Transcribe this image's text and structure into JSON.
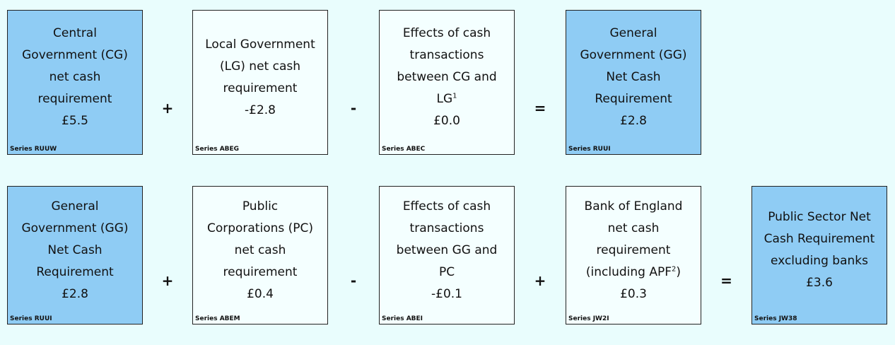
{
  "rows": [
    {
      "boxes": [
        {
          "lines": [
            "Central",
            "Government (CG)",
            "net cash",
            "requirement"
          ],
          "value": "£5.5",
          "series": "Series RUUW",
          "style": "blue"
        },
        {
          "lines": [
            "Local Government",
            "(LG) net cash",
            "requirement"
          ],
          "value": "-£2.8",
          "series": "Series ABEG",
          "style": "white"
        },
        {
          "lines": [
            "Effects of cash",
            "transactions",
            "between CG and",
            {
              "text": "LG",
              "sup": "1"
            }
          ],
          "value": "£0.0",
          "series": "Series ABEC",
          "style": "white"
        },
        {
          "lines": [
            "General",
            "Government (GG)",
            "Net Cash",
            "Requirement"
          ],
          "value": "£2.8",
          "series": "Series RUUI",
          "style": "blue"
        }
      ],
      "operators": [
        "+",
        "-",
        "="
      ]
    },
    {
      "boxes": [
        {
          "lines": [
            "General",
            "Government (GG)",
            "Net Cash",
            "Requirement"
          ],
          "value": "£2.8",
          "series": "Series RUUI",
          "style": "blue"
        },
        {
          "lines": [
            "Public",
            "Corporations (PC)",
            "net cash",
            "requirement"
          ],
          "value": "£0.4",
          "series": "Series ABEM",
          "style": "white"
        },
        {
          "lines": [
            "Effects of cash",
            "transactions",
            "between GG and",
            "PC"
          ],
          "value": "-£0.1",
          "series": "Series ABEI",
          "style": "white"
        },
        {
          "lines": [
            "Bank of England",
            "net cash",
            "requirement",
            {
              "text": "(including APF",
              "sup": "2",
              "after": ")"
            }
          ],
          "value": "£0.3",
          "series": "Series JW2I",
          "style": "white"
        },
        {
          "lines": [
            "Public Sector Net",
            "Cash Requirement",
            "excluding banks"
          ],
          "value": "£3.6",
          "series": "Series JW38",
          "style": "blue"
        }
      ],
      "operators": [
        "+",
        "-",
        "+",
        "="
      ]
    }
  ]
}
